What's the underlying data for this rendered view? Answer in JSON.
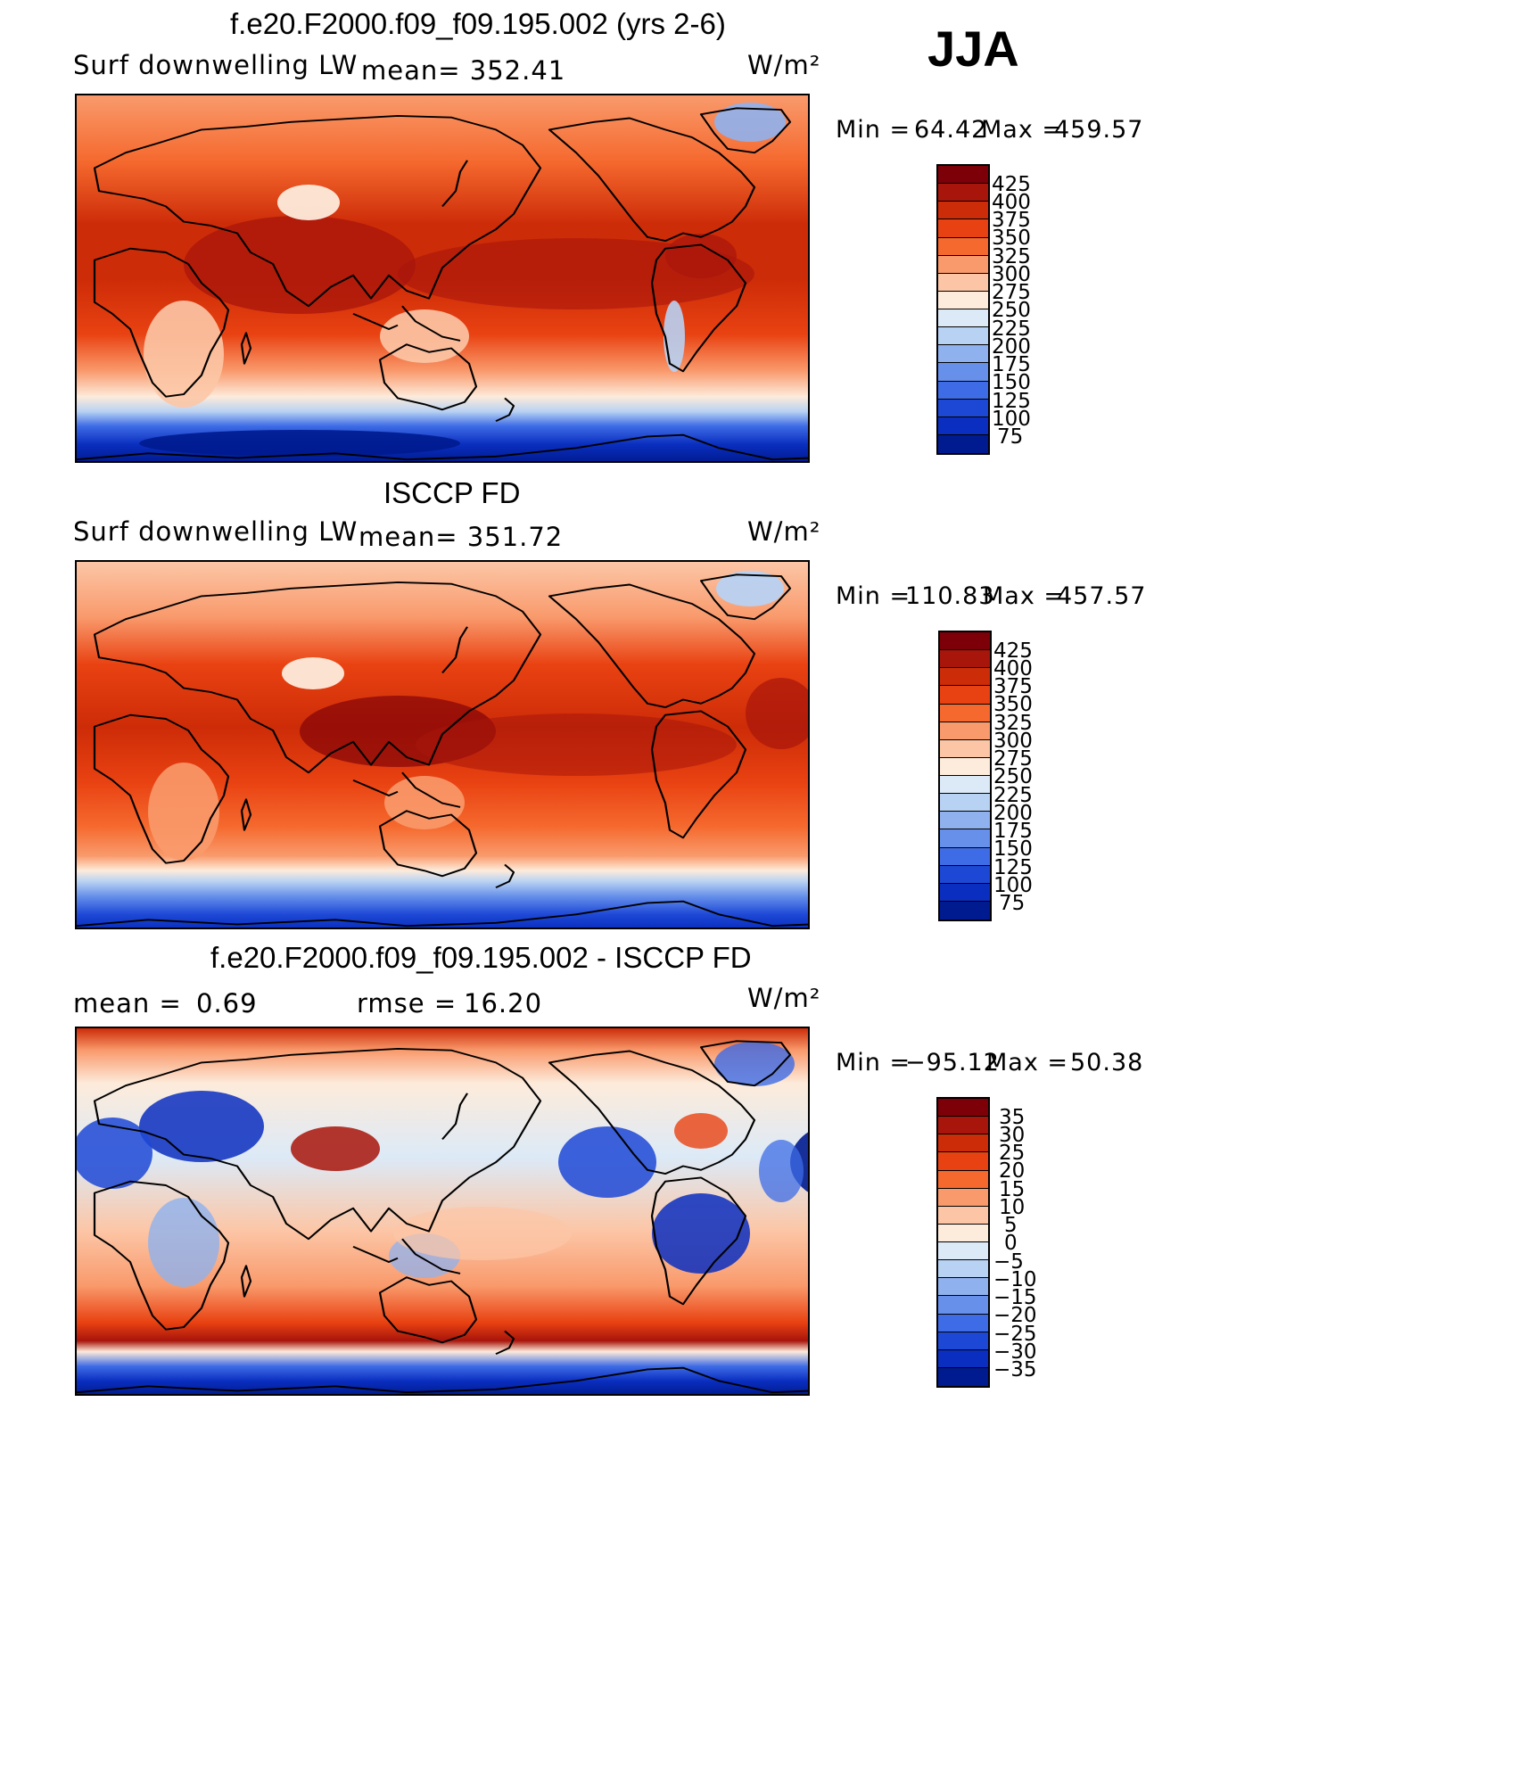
{
  "season": "JJA",
  "panels": [
    {
      "title": "f.e20.F2000.f09_f09.195.002 (yrs 2-6)",
      "left_label": "Surf downwelling LW",
      "center_label": "mean= 352.41",
      "units": "W/m²",
      "min_label": "Min =",
      "min_value": "64.42",
      "max_label": "Max =",
      "max_value": "459.57",
      "colorbar_labels": [
        "425",
        "400",
        "375",
        "350",
        "325",
        "300",
        "275",
        "250",
        "225",
        "200",
        "175",
        "150",
        "125",
        "100",
        "75"
      ]
    },
    {
      "title": "ISCCP FD",
      "left_label": "Surf downwelling LW",
      "center_label": "mean= 351.72",
      "units": "W/m²",
      "min_label": "Min =",
      "min_value": "110.83",
      "max_label": "Max =",
      "max_value": "457.57",
      "colorbar_labels": [
        "425",
        "400",
        "375",
        "350",
        "325",
        "300",
        "275",
        "250",
        "225",
        "200",
        "175",
        "150",
        "125",
        "100",
        "75"
      ]
    },
    {
      "title": "f.e20.F2000.f09_f09.195.002 - ISCCP FD",
      "left_label": "mean =",
      "left_value": "0.69",
      "center_label": "rmse =",
      "center_value": "16.20",
      "units": "W/m²",
      "min_label": "Min =",
      "min_value": "−95.12",
      "max_label": "Max =",
      "max_value": "50.38",
      "colorbar_labels": [
        "35",
        "30",
        "25",
        "20",
        "15",
        "10",
        "5",
        "0",
        "−5",
        "−10",
        "−15",
        "−20",
        "−25",
        "−30",
        "−35"
      ]
    }
  ],
  "colorbar_colors": [
    "#7d0008",
    "#a8150b",
    "#cd2c08",
    "#e94212",
    "#f5692e",
    "#f99a6c",
    "#fcc6a6",
    "#fdebdb",
    "#dceaf7",
    "#b8d2f3",
    "#8fb1ee",
    "#6690ea",
    "#3e6ce6",
    "#1d48d6",
    "#0a2ebf",
    "#001b8f"
  ],
  "chart_data": {
    "type": "heatmap",
    "maps": [
      {
        "name": "f.e20.F2000.f09_f09.195.002 (yrs 2-6)",
        "variable": "Surf downwelling LW",
        "units": "W/m²",
        "mean": 352.41,
        "min": 64.42,
        "max": 459.57,
        "levels": [
          75,
          100,
          125,
          150,
          175,
          200,
          225,
          250,
          275,
          300,
          325,
          350,
          375,
          400,
          425
        ]
      },
      {
        "name": "ISCCP FD",
        "variable": "Surf downwelling LW",
        "units": "W/m²",
        "mean": 351.72,
        "min": 110.83,
        "max": 457.57,
        "levels": [
          75,
          100,
          125,
          150,
          175,
          200,
          225,
          250,
          275,
          300,
          325,
          350,
          375,
          400,
          425
        ]
      },
      {
        "name": "f.e20.F2000.f09_f09.195.002 - ISCCP FD",
        "units": "W/m²",
        "mean": 0.69,
        "rmse": 16.2,
        "min": -95.12,
        "max": 50.38,
        "levels": [
          -35,
          -30,
          -25,
          -20,
          -15,
          -10,
          -5,
          0,
          5,
          10,
          15,
          20,
          25,
          30,
          35
        ]
      }
    ]
  }
}
